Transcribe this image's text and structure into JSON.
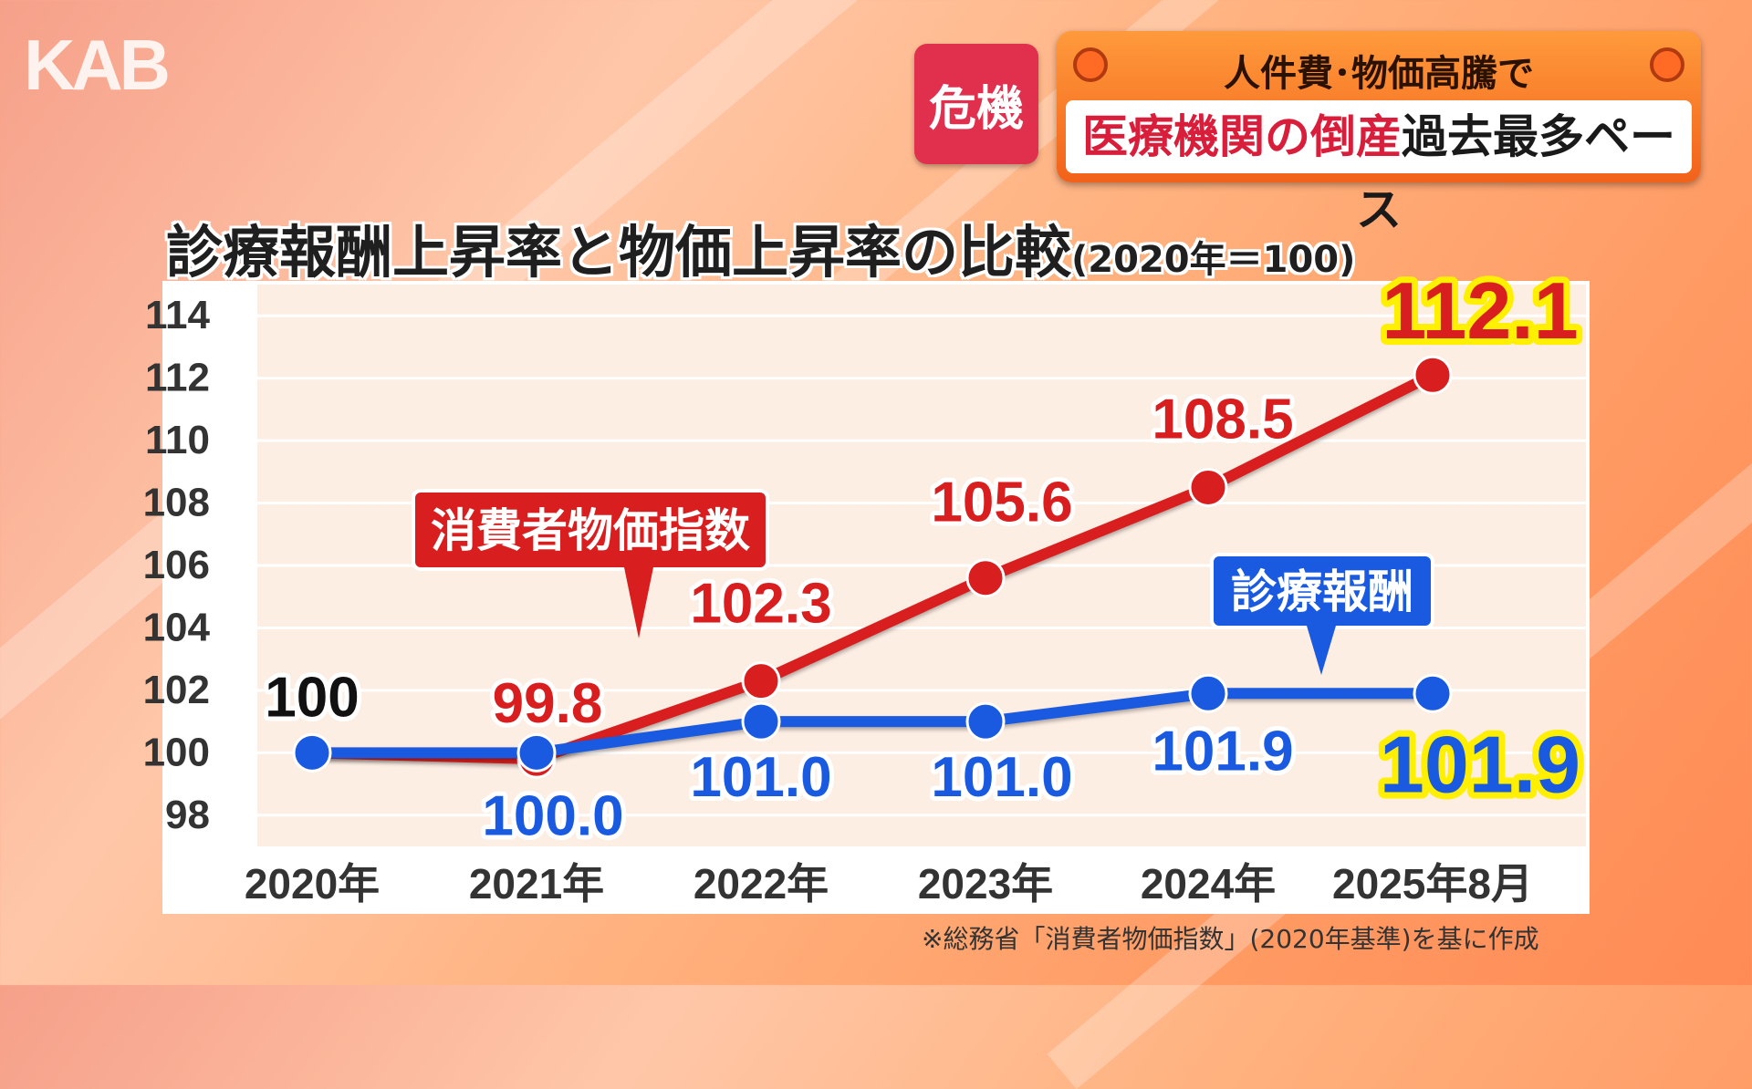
{
  "logo": "KAB",
  "crisis_badge": "危機",
  "headline": {
    "top": "人件費･物価高騰で",
    "bottom_red": "医療機関の倒産",
    "bottom_black": "過去最多ペース"
  },
  "colors": {
    "cpi": "#d81e1e",
    "fee": "#1a5ae0",
    "highlight": "#ffef00",
    "badge": "#e0304e"
  },
  "chart_data": {
    "type": "line",
    "title": "診療報酬上昇率と物価上昇率の比較",
    "subtitle": "(2020年＝100)",
    "categories": [
      "2020年",
      "2021年",
      "2022年",
      "2023年",
      "2024年",
      "2025年8月"
    ],
    "ylim": [
      97,
      115
    ],
    "yticks": [
      114,
      112,
      110,
      108,
      106,
      104,
      102,
      100,
      98
    ],
    "grid": true,
    "series": [
      {
        "name": "消費者物価指数",
        "values": [
          100,
          99.8,
          102.3,
          105.6,
          108.5,
          112.1
        ],
        "labels": [
          "100",
          "99.8",
          "102.3",
          "105.6",
          "108.5",
          "112.1"
        ]
      },
      {
        "name": "診療報酬",
        "values": [
          100,
          100.0,
          101.0,
          101.0,
          101.9,
          101.9
        ],
        "labels": [
          "",
          "100.0",
          "101.0",
          "101.0",
          "101.9",
          "101.9"
        ]
      }
    ],
    "source_note": "※総務省「消費者物価指数」(2020年基準)を基に作成"
  }
}
